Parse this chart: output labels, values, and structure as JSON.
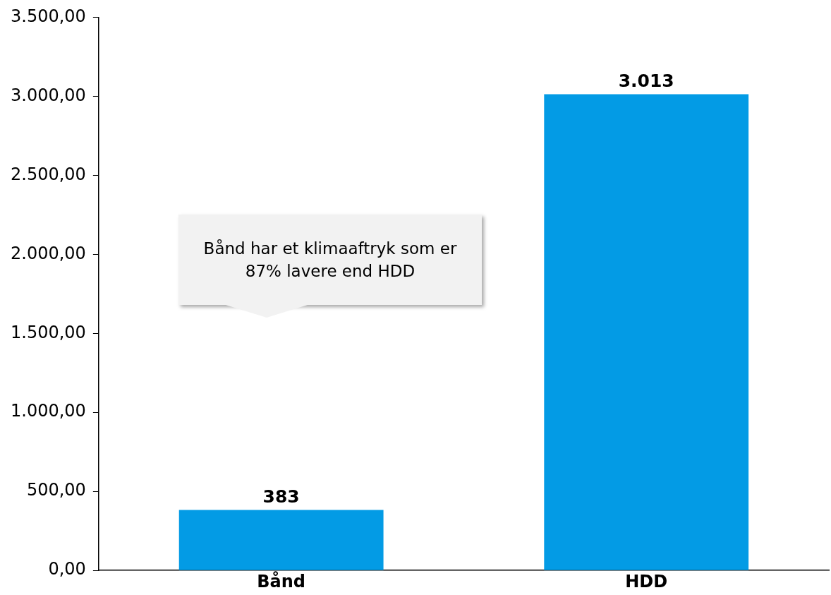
{
  "chart_data": {
    "type": "bar",
    "categories": [
      "Bånd",
      "HDD"
    ],
    "values": [
      383,
      3013
    ],
    "value_labels": [
      "383",
      "3.013"
    ],
    "color": "#039be5",
    "ylim": [
      0,
      3500
    ],
    "yticks": [
      {
        "value": 0,
        "label": "0,00"
      },
      {
        "value": 500,
        "label": "500,00"
      },
      {
        "value": 1000,
        "label": "1.000,00"
      },
      {
        "value": 1500,
        "label": "1.500,00"
      },
      {
        "value": 2000,
        "label": "2.000,00"
      },
      {
        "value": 2500,
        "label": "2.500,00"
      },
      {
        "value": 3000,
        "label": "3.000,00"
      },
      {
        "value": 3500,
        "label": "3.500,00"
      }
    ],
    "grid": false,
    "legend": false,
    "annotations": [
      "Bånd har et klimaaftryk som er 87% lavere end HDD"
    ]
  }
}
